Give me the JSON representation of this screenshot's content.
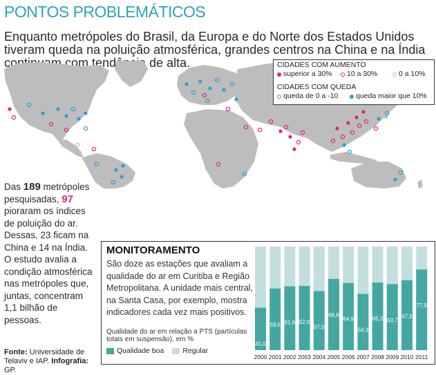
{
  "title": "PONTOS PROBLEMÁTICOS",
  "lead": "Enquanto metrópoles do Brasil, da Europa e do Norte dos Estados Unidos tiveram queda na poluição atmosférica, grandes centros na China e na Índia continuam com tendência de alta.",
  "legend": {
    "increase_head": "CIDADES COM AUMENTO",
    "decrease_head": "CIDADES COM QUEDA",
    "items": [
      {
        "label": "superior a 30%",
        "color": "#e0267a",
        "style": "filled"
      },
      {
        "label": "10 a 30%",
        "color": "#e0267a",
        "style": "ring"
      },
      {
        "label": "0 a 10%",
        "color": "#e0267a",
        "style": "ring-light"
      },
      {
        "label": "queda de 0 a -10",
        "color": "#2d9fd8",
        "style": "ring"
      },
      {
        "label": "queda maior que 10%",
        "color": "#2d9fd8",
        "style": "filled"
      }
    ]
  },
  "colors": {
    "accent": "#2ba3bc",
    "map_land": "#bdbdbd",
    "increase": "#e0267a",
    "decrease": "#2d9fd8",
    "good": "#45a7a2",
    "regular": "#c3dfdd"
  },
  "side": {
    "total": "189",
    "worse": "97",
    "p1": "Das ",
    "p2": " metrópoles pesquisadas, ",
    "p3": " pioraram os índices de poluição do ar. Dessas, 23 ficam na China e 14 na Índia. O estudo avalia a condição atmosférica nas metrópoles que, juntas, concentram 1,1 bilhão de pessoas."
  },
  "source": {
    "label": "Fonte:",
    "text": " Universidade de Telaviv e IAP. ",
    "credit_label": "Infografia:",
    "credit": " GP."
  },
  "panel": {
    "title": "MONITORAMENTO",
    "text": "São doze as estações que avaliam a qualidade do ar em Curitiba e Região Metropolitana. A unidade mais central, na Santa Casa, por exemplo, mostra indicadores cada vez mais positivos.",
    "caption": "Qualidade do ar em relação a PTS (partículas totais em suspensão), em %",
    "legend_good": "Qualidade boa",
    "legend_regular": "Regular"
  },
  "chart_data": {
    "type": "bar",
    "stacked": true,
    "title": "Qualidade do ar em relação a PTS (partículas totais em suspensão), em %",
    "categories": [
      "2000",
      "2001",
      "2002",
      "2003",
      "2004",
      "2005",
      "2006",
      "2007",
      "2008",
      "2009",
      "2010",
      "2011"
    ],
    "series": [
      {
        "name": "Qualidade boa",
        "values": [
          41.0,
          59.5,
          61.6,
          62.0,
          57.0,
          68.8,
          64.9,
          54.3,
          65.3,
          63.7,
          67.5,
          77.9
        ]
      },
      {
        "name": "Regular",
        "values": [
          59.0,
          40.5,
          38.4,
          38.0,
          43.0,
          31.2,
          35.1,
          45.7,
          34.7,
          36.3,
          32.5,
          22.1
        ]
      }
    ],
    "value_labels": [
      "41,0",
      "59,5",
      "61,6",
      "62,0",
      "57,0",
      "68,8",
      "64,9",
      "54,3",
      "65,3",
      "63,7",
      "67,5",
      "77,9"
    ],
    "ylim": [
      0,
      100
    ],
    "xlabel": "",
    "ylabel": ""
  }
}
